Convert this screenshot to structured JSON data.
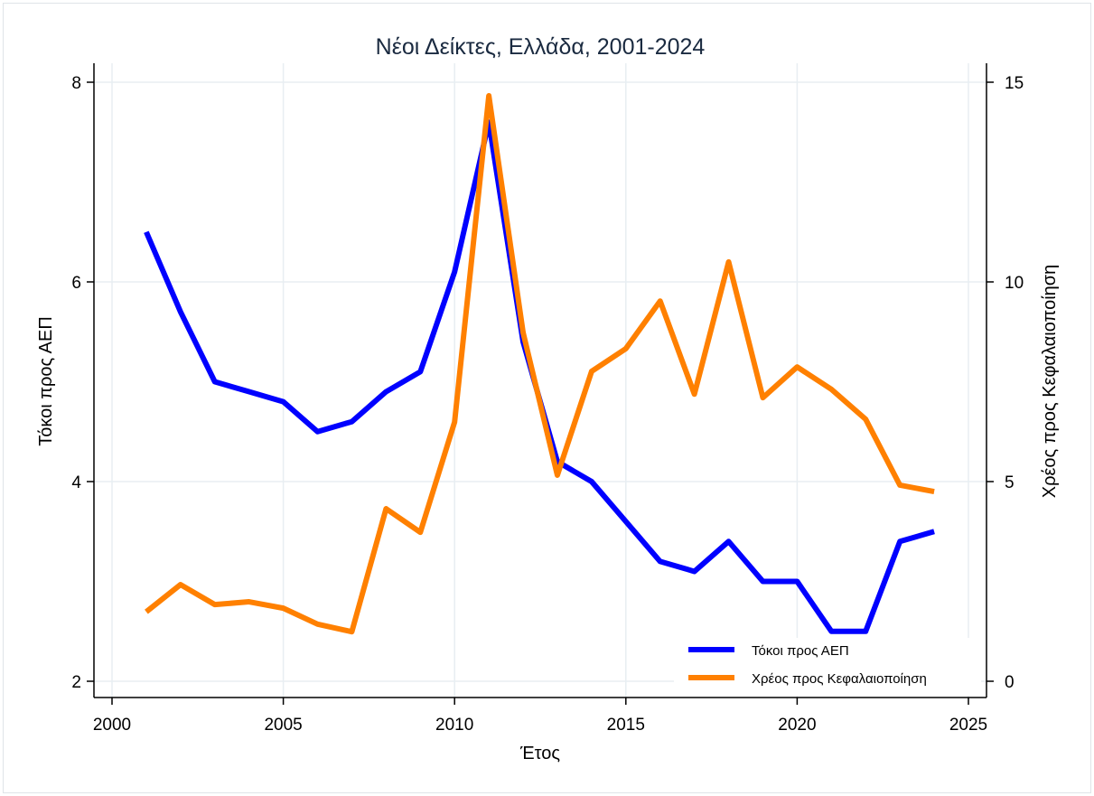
{
  "chart_data": {
    "type": "line",
    "title": "Νέοι Δείκτες, Ελλάδα, 2001-2024",
    "xlabel": "Έτος",
    "ylabel": "Τόκοι προς ΑΕΠ",
    "ylabel_right": "Χρέος προς Κεφαλαιοποίηση",
    "xlim": [
      2000,
      2025
    ],
    "ylim": [
      2,
      8
    ],
    "ylim_right": [
      0,
      15
    ],
    "xticks": [
      2000,
      2005,
      2010,
      2015,
      2020,
      2025
    ],
    "yticks": [
      2,
      4,
      6,
      8
    ],
    "yticks_right": [
      0,
      5,
      10,
      15
    ],
    "grid": true,
    "legend_position": "bottom-right",
    "x": [
      2001,
      2002,
      2003,
      2004,
      2005,
      2006,
      2007,
      2008,
      2009,
      2010,
      2011,
      2012,
      2013,
      2014,
      2015,
      2016,
      2017,
      2018,
      2019,
      2020,
      2021,
      2022,
      2023,
      2024
    ],
    "series": [
      {
        "name": "Τόκοι προς ΑΕΠ",
        "axis": "left",
        "color": "#0000ff",
        "values": [
          6.5,
          5.7,
          5.0,
          4.9,
          4.8,
          4.5,
          4.6,
          4.9,
          5.1,
          6.1,
          7.6,
          5.4,
          4.2,
          4.0,
          3.6,
          3.2,
          3.1,
          3.4,
          3.0,
          3.0,
          2.5,
          2.5,
          3.4,
          3.5
        ]
      },
      {
        "name": "Χρέος προς Κεφαλαιοποίηση",
        "axis": "right",
        "color": "#ff8000",
        "values": [
          1.74,
          2.42,
          1.92,
          1.99,
          1.83,
          1.43,
          1.24,
          4.32,
          3.73,
          6.49,
          14.66,
          8.73,
          5.16,
          7.76,
          8.33,
          9.52,
          7.19,
          10.5,
          7.1,
          7.87,
          7.31,
          6.56,
          4.91,
          4.75
        ]
      }
    ]
  }
}
